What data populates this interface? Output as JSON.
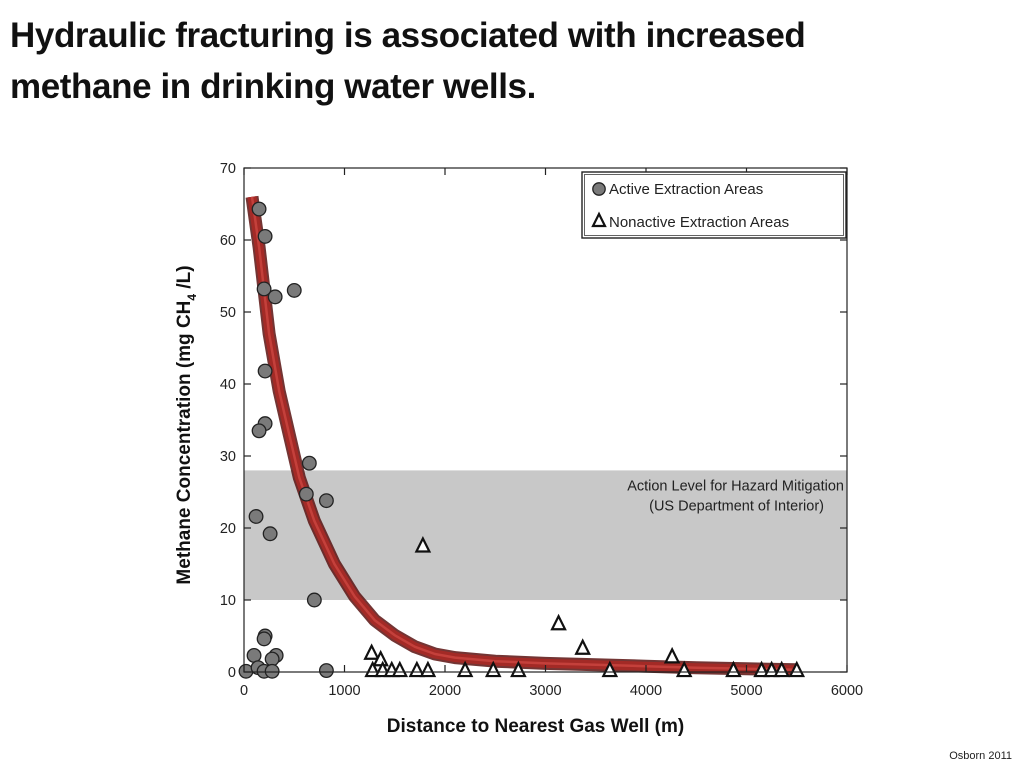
{
  "slide": {
    "title_line1": "Hydraulic fracturing is associated with increased",
    "title_line2": "methane in drinking water wells.",
    "credit": "Osborn 2011"
  },
  "chart_data": {
    "type": "scatter",
    "title": "",
    "xlabel": "Distance to Nearest Gas Well (m)",
    "ylabel_parts": [
      "Methane Concentration (mg CH",
      "4",
      " /L)"
    ],
    "xlim": [
      0,
      6000
    ],
    "ylim": [
      0,
      70
    ],
    "xticks": [
      0,
      1000,
      2000,
      3000,
      4000,
      5000,
      6000
    ],
    "yticks": [
      0,
      10,
      20,
      30,
      40,
      50,
      60,
      70
    ],
    "legend_position": "top-right",
    "action_band": {
      "y_range": [
        10,
        28
      ],
      "label_line1": "Action Level for Hazard Mitigation",
      "label_line2": "(US Department of Interior)",
      "color": "#c8c8c8"
    },
    "series": [
      {
        "name": "Active Extraction Areas",
        "marker": "circle",
        "color": "#7a7a7a",
        "points": [
          [
            150,
            64.3
          ],
          [
            210,
            60.5
          ],
          [
            200,
            53.2
          ],
          [
            310,
            52.1
          ],
          [
            500,
            53.0
          ],
          [
            210,
            41.8
          ],
          [
            210,
            34.5
          ],
          [
            150,
            33.5
          ],
          [
            650,
            29.0
          ],
          [
            620,
            24.7
          ],
          [
            820,
            23.8
          ],
          [
            120,
            21.6
          ],
          [
            260,
            19.2
          ],
          [
            700,
            10.0
          ],
          [
            210,
            5.0
          ],
          [
            200,
            4.6
          ],
          [
            100,
            2.3
          ],
          [
            320,
            2.3
          ],
          [
            280,
            1.8
          ],
          [
            20,
            0.1
          ],
          [
            140,
            0.6
          ],
          [
            200,
            0.1
          ],
          [
            280,
            0.1
          ],
          [
            820,
            0.2
          ]
        ]
      },
      {
        "name": "Nonactive Extraction Areas",
        "marker": "triangle",
        "color": "#ffffff",
        "points": [
          [
            1780,
            17.5
          ],
          [
            3130,
            6.7
          ],
          [
            3370,
            3.3
          ],
          [
            4260,
            2.1
          ],
          [
            1270,
            2.6
          ],
          [
            1360,
            1.7
          ],
          [
            1280,
            0.2
          ],
          [
            1380,
            0.2
          ],
          [
            1470,
            0.2
          ],
          [
            1550,
            0.2
          ],
          [
            1720,
            0.2
          ],
          [
            1830,
            0.2
          ],
          [
            2200,
            0.2
          ],
          [
            2480,
            0.2
          ],
          [
            2730,
            0.2
          ],
          [
            3640,
            0.2
          ],
          [
            4380,
            0.2
          ],
          [
            4870,
            0.2
          ],
          [
            5150,
            0.2
          ],
          [
            5250,
            0.2
          ],
          [
            5350,
            0.2
          ],
          [
            5500,
            0.2
          ]
        ]
      }
    ],
    "trend_curve": {
      "color": "#a32a26",
      "points": [
        [
          80,
          66
        ],
        [
          150,
          59
        ],
        [
          250,
          47
        ],
        [
          350,
          39
        ],
        [
          450,
          33
        ],
        [
          550,
          27
        ],
        [
          700,
          21
        ],
        [
          900,
          15
        ],
        [
          1100,
          10.5
        ],
        [
          1300,
          7.2
        ],
        [
          1500,
          5.1
        ],
        [
          1700,
          3.5
        ],
        [
          1900,
          2.5
        ],
        [
          2100,
          2.0
        ],
        [
          2500,
          1.5
        ],
        [
          3000,
          1.2
        ],
        [
          3500,
          1.0
        ],
        [
          4000,
          0.8
        ],
        [
          4500,
          0.6
        ],
        [
          5000,
          0.45
        ],
        [
          5500,
          0.3
        ]
      ]
    }
  }
}
